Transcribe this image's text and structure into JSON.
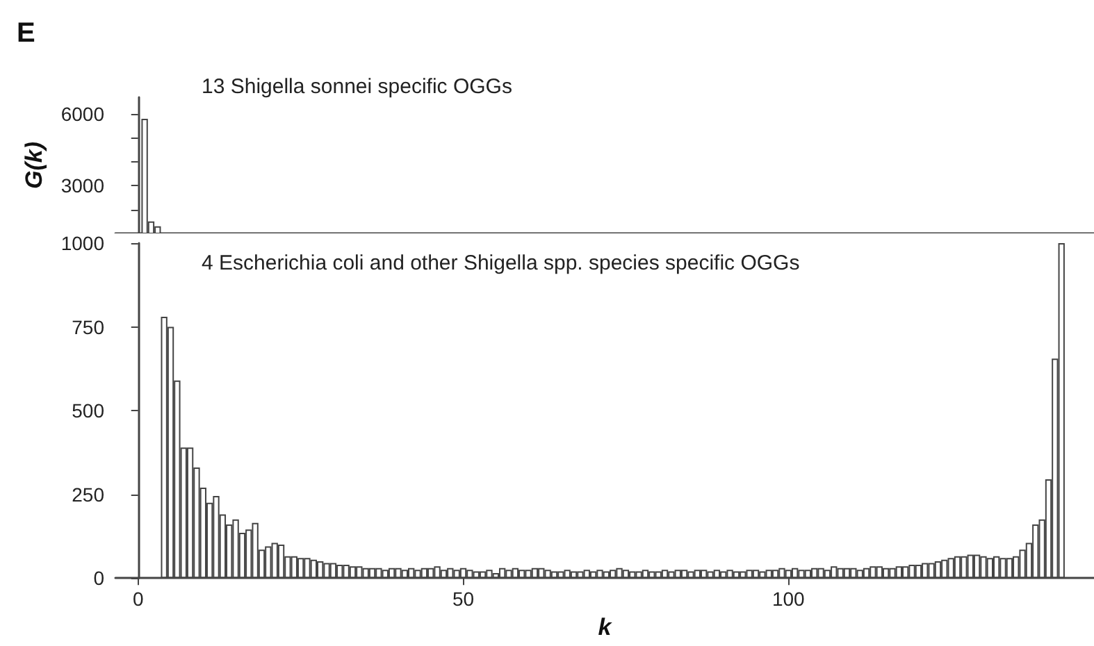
{
  "chart_data": [
    {
      "type": "bar",
      "title": "E",
      "ylabel": "G(k)",
      "x": [
        1,
        2,
        3
      ],
      "values": [
        5800,
        1500,
        1300
      ],
      "color": "#ffffff",
      "xlim": [
        -3.5,
        147
      ],
      "xticks": [
        0,
        50,
        100
      ],
      "ylim": [
        1000,
        6700
      ],
      "yticks": [
        {
          "value": 2000,
          "label": null
        },
        3000,
        {
          "value": 4000,
          "label": null
        },
        {
          "value": 5000,
          "label": null
        },
        6000
      ],
      "tick_labels": "y",
      "annotations": [
        "13 Shigella sonnei specific OGGs"
      ]
    },
    {
      "type": "bar",
      "xlabel": "k",
      "x": [
        4,
        5,
        6,
        7,
        8,
        9,
        10,
        11,
        12,
        13,
        14,
        15,
        16,
        17,
        18,
        19,
        20,
        21,
        22,
        23,
        24,
        25,
        26,
        27,
        28,
        29,
        30,
        31,
        32,
        33,
        34,
        35,
        36,
        37,
        38,
        39,
        40,
        41,
        42,
        43,
        44,
        45,
        46,
        47,
        48,
        49,
        50,
        51,
        52,
        53,
        54,
        55,
        56,
        57,
        58,
        59,
        60,
        61,
        62,
        63,
        64,
        65,
        66,
        67,
        68,
        69,
        70,
        71,
        72,
        73,
        74,
        75,
        76,
        77,
        78,
        79,
        80,
        81,
        82,
        83,
        84,
        85,
        86,
        87,
        88,
        89,
        90,
        91,
        92,
        93,
        94,
        95,
        96,
        97,
        98,
        99,
        100,
        101,
        102,
        103,
        104,
        105,
        106,
        107,
        108,
        109,
        110,
        111,
        112,
        113,
        114,
        115,
        116,
        117,
        118,
        119,
        120,
        121,
        122,
        123,
        124,
        125,
        126,
        127,
        128,
        129,
        130,
        131,
        132,
        133,
        134,
        135,
        136,
        137,
        138,
        139,
        140,
        141,
        142
      ],
      "values": [
        780,
        750,
        590,
        390,
        390,
        330,
        270,
        225,
        245,
        190,
        160,
        175,
        135,
        145,
        165,
        85,
        95,
        105,
        100,
        65,
        65,
        60,
        60,
        55,
        50,
        45,
        45,
        40,
        40,
        35,
        35,
        30,
        30,
        30,
        25,
        30,
        30,
        25,
        30,
        25,
        30,
        30,
        35,
        25,
        30,
        25,
        30,
        25,
        20,
        20,
        25,
        15,
        30,
        25,
        30,
        25,
        25,
        30,
        30,
        25,
        20,
        20,
        25,
        20,
        20,
        25,
        20,
        25,
        20,
        25,
        30,
        25,
        20,
        20,
        25,
        20,
        20,
        25,
        20,
        25,
        25,
        20,
        25,
        25,
        20,
        25,
        20,
        25,
        20,
        20,
        25,
        25,
        20,
        25,
        25,
        30,
        25,
        30,
        25,
        25,
        30,
        30,
        25,
        35,
        30,
        30,
        30,
        25,
        30,
        35,
        35,
        30,
        30,
        35,
        35,
        40,
        40,
        45,
        45,
        50,
        55,
        60,
        65,
        65,
        70,
        70,
        65,
        60,
        65,
        60,
        60,
        65,
        85,
        105,
        160,
        175,
        295,
        655,
        1000
      ],
      "color": "#ffffff",
      "xlim": [
        -3.5,
        147
      ],
      "xticks": [
        0,
        50,
        100
      ],
      "ylim": [
        0,
        1000
      ],
      "yticks": [
        0,
        250,
        500,
        750,
        1000
      ],
      "annotations": [
        "4 Escherichia coli and other Shigella spp. species specific OGGs"
      ]
    }
  ]
}
